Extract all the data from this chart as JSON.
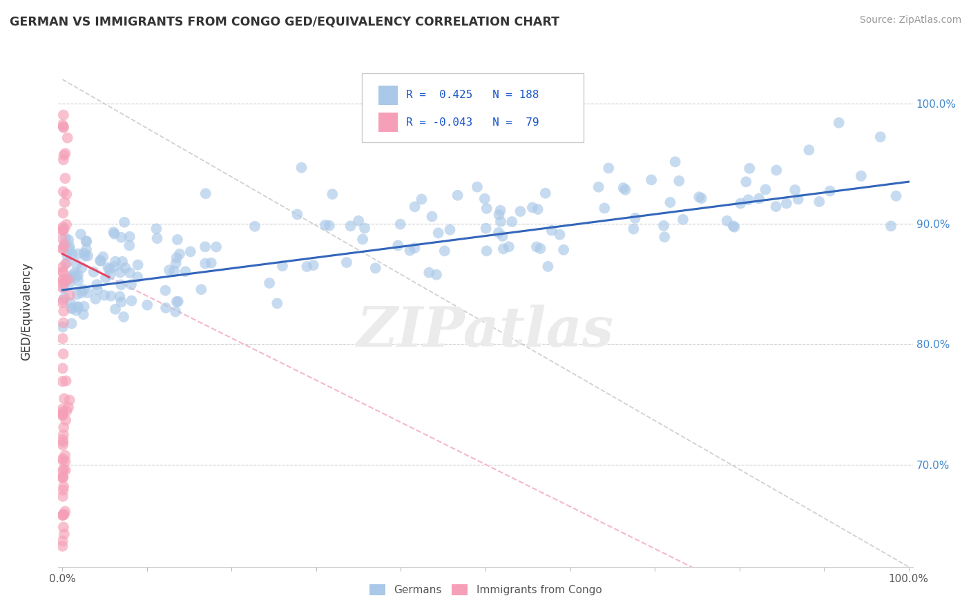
{
  "title": "GERMAN VS IMMIGRANTS FROM CONGO GED/EQUIVALENCY CORRELATION CHART",
  "source": "Source: ZipAtlas.com",
  "ylabel": "GED/Equivalency",
  "legend_labels": [
    "Germans",
    "Immigrants from Congo"
  ],
  "r_blue": 0.425,
  "n_blue": 188,
  "r_pink": -0.043,
  "n_pink": 79,
  "blue_color": "#aac8e8",
  "blue_line_color": "#3366bb",
  "pink_color": "#f5a0b8",
  "pink_line_color": "#e84466",
  "pink_dashed_color": "#f5b8c8",
  "dashed_line_color": "#d0d0d0",
  "right_ytick_labels": [
    "70.0%",
    "80.0%",
    "90.0%",
    "100.0%"
  ],
  "right_ytick_values": [
    0.7,
    0.8,
    0.9,
    1.0
  ],
  "background_color": "#ffffff",
  "watermark": "ZIPatlas",
  "title_color": "#333333",
  "source_color": "#999999",
  "ylabel_color": "#333333",
  "tick_label_color": "#555555",
  "right_tick_color": "#4488cc",
  "grid_color": "#cccccc"
}
